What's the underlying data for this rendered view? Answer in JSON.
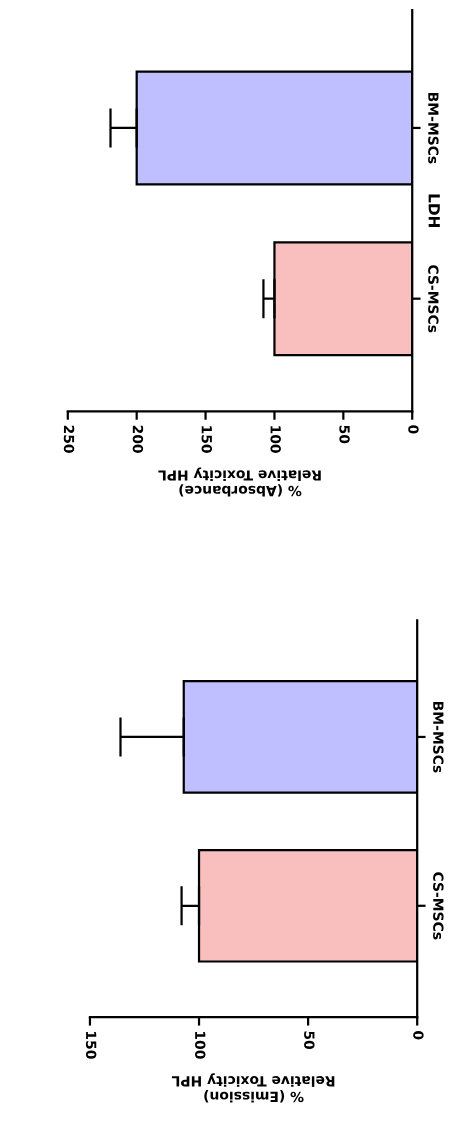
{
  "chart_data": [
    {
      "type": "bar",
      "orientation": "horizontal",
      "title": "LDH",
      "xlabel": "% (Absorbance)\nRelative Toxicity HPL",
      "categories": [
        "BM-MSCs",
        "CS-MSCs"
      ],
      "values": [
        200,
        100
      ],
      "colors": [
        "#bfbfff",
        "#f9bfbf"
      ],
      "errors": [
        [
          200,
          219
        ],
        [
          100,
          108
        ]
      ],
      "xlim": [
        250,
        0
      ],
      "xticks": [
        0,
        50,
        100,
        150,
        200,
        250
      ],
      "grid": false
    },
    {
      "type": "bar",
      "orientation": "horizontal",
      "xlabel": "% (Emission)\nRelative Toxicity HPL",
      "categories": [
        "BM-MSCs",
        "CS-MSCs"
      ],
      "values": [
        107,
        100
      ],
      "colors": [
        "#bfbfff",
        "#f9bfbf"
      ],
      "errors": [
        [
          107,
          136
        ],
        [
          100,
          108
        ]
      ],
      "xlim": [
        150,
        0
      ],
      "xticks": [
        0,
        50,
        100,
        150
      ],
      "grid": false
    }
  ]
}
